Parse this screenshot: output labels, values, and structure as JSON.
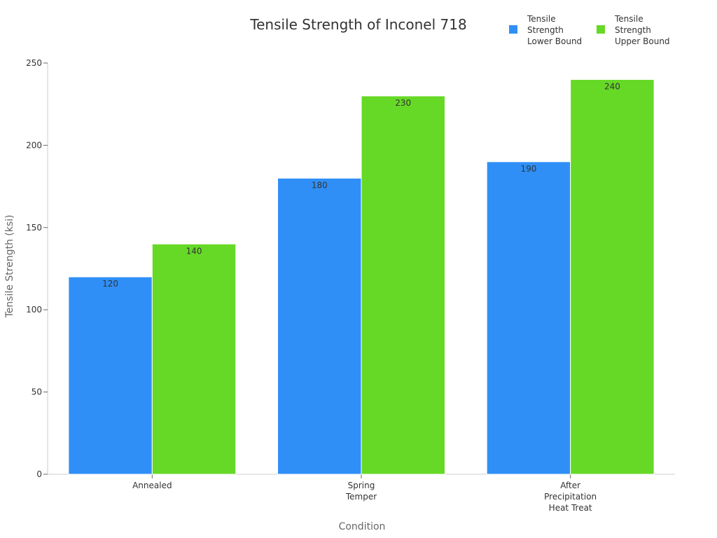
{
  "chart_data": {
    "type": "bar",
    "title": "Tensile Strength of Inconel 718",
    "xlabel": "Condition",
    "ylabel": "Tensile Strength (ksi)",
    "categories": [
      [
        "Annealed"
      ],
      [
        "Spring",
        "Temper"
      ],
      [
        "After",
        "Precipitation",
        "Heat Treat"
      ]
    ],
    "series": [
      {
        "name": [
          "Tensile",
          "Strength",
          "Lower Bound"
        ],
        "color": "#2f8ff7",
        "values": [
          120,
          180,
          190
        ]
      },
      {
        "name": [
          "Tensile",
          "Strength",
          "Upper Bound"
        ],
        "color": "#66d926",
        "values": [
          140,
          230,
          240
        ]
      }
    ],
    "ylim": [
      0,
      250
    ],
    "yticks": [
      0,
      50,
      100,
      150,
      200,
      250
    ],
    "grid": false,
    "legend_position": "top-right"
  }
}
